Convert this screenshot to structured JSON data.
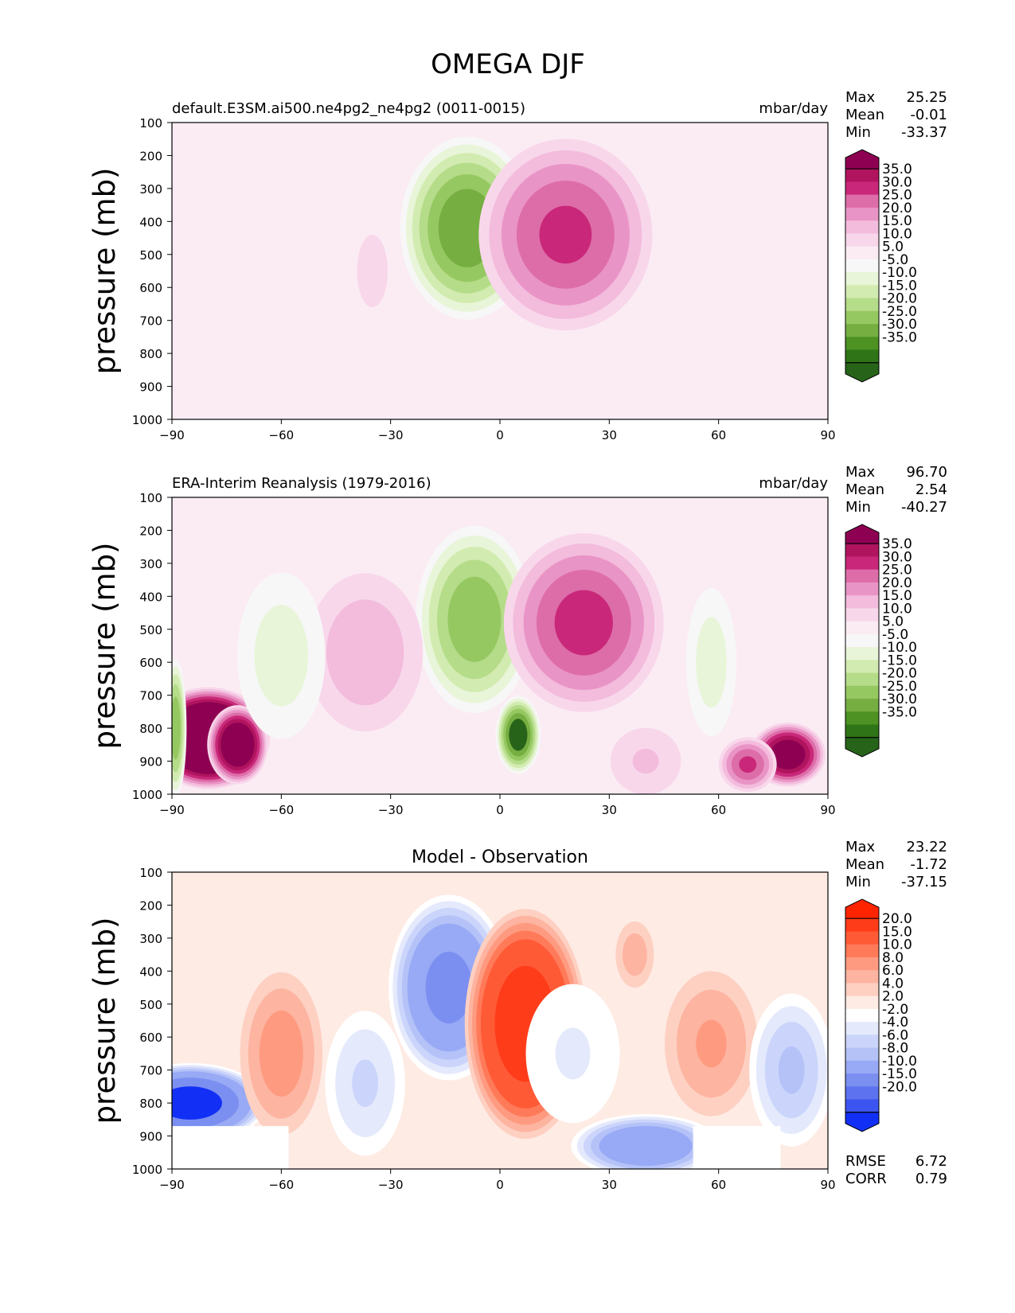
{
  "title": "OMEGA DJF",
  "chart_data": [
    {
      "type": "heatmap",
      "title": "default.E3SM.ai500.ne4pg2_ne4pg2 (0011-0015)",
      "units": "mbar/day",
      "ylabel": "pressure (mb)",
      "xlabel": "",
      "xlim": [
        -90,
        90
      ],
      "ylim": [
        1000,
        100
      ],
      "xticks": [
        "−90",
        "−60",
        "−30",
        "0",
        "30",
        "60",
        "90"
      ],
      "yticks": [
        "100",
        "200",
        "300",
        "400",
        "500",
        "600",
        "700",
        "800",
        "900",
        "1000"
      ],
      "stats": [
        {
          "label": "Max",
          "value": "25.25"
        },
        {
          "label": "Mean",
          "value": "-0.01"
        },
        {
          "label": "Min",
          "value": "-33.37"
        }
      ],
      "colorbar": {
        "labels": [
          "35.0",
          "30.0",
          "25.0",
          "20.0",
          "15.0",
          "10.0",
          "5.0",
          "-5.0",
          "-10.0",
          "-15.0",
          "-20.0",
          "-25.0",
          "-30.0",
          "-35.0"
        ],
        "colors": [
          "#8e0152",
          "#b0145f",
          "#c9287a",
          "#dd6da8",
          "#e994c6",
          "#f3bbdc",
          "#f8d7eb",
          "#fbecf4",
          "#f7f7f7",
          "#e8f5d8",
          "#d2ebb0",
          "#b5dc89",
          "#96c862",
          "#76ae41",
          "#4d9222",
          "#2f7517",
          "#276419"
        ]
      },
      "features": [
        {
          "x": -9,
          "y": 420,
          "value": -33,
          "sx": 9,
          "sy": 260
        },
        {
          "x": 18,
          "y": 440,
          "value": 25,
          "sx": 12,
          "sy": 280
        },
        {
          "x": -35,
          "y": 550,
          "value": 6,
          "sx": 4,
          "sy": 200
        }
      ]
    },
    {
      "type": "heatmap",
      "title": "ERA-Interim Reanalysis (1979-2016)",
      "units": "mbar/day",
      "ylabel": "pressure (mb)",
      "xlabel": "",
      "xlim": [
        -90,
        90
      ],
      "ylim": [
        1000,
        100
      ],
      "xticks": [
        "−90",
        "−60",
        "−30",
        "0",
        "30",
        "60",
        "90"
      ],
      "yticks": [
        "100",
        "200",
        "300",
        "400",
        "500",
        "600",
        "700",
        "800",
        "900",
        "1000"
      ],
      "stats": [
        {
          "label": "Max",
          "value": "96.70"
        },
        {
          "label": "Mean",
          "value": "2.54"
        },
        {
          "label": "Min",
          "value": "-40.27"
        }
      ],
      "colorbar": {
        "labels": [
          "35.0",
          "30.0",
          "25.0",
          "20.0",
          "15.0",
          "10.0",
          "5.0",
          "-5.0",
          "-10.0",
          "-15.0",
          "-20.0",
          "-25.0",
          "-30.0",
          "-35.0"
        ],
        "colors": [
          "#8e0152",
          "#b0145f",
          "#c9287a",
          "#dd6da8",
          "#e994c6",
          "#f3bbdc",
          "#f8d7eb",
          "#fbecf4",
          "#f7f7f7",
          "#e8f5d8",
          "#d2ebb0",
          "#b5dc89",
          "#96c862",
          "#76ae41",
          "#4d9222",
          "#2f7517",
          "#276419"
        ]
      },
      "features": [
        {
          "x": -7,
          "y": 470,
          "value": -28,
          "sx": 8,
          "sy": 270
        },
        {
          "x": 5,
          "y": 820,
          "value": -38,
          "sx": 3,
          "sy": 110
        },
        {
          "x": 23,
          "y": 480,
          "value": 26,
          "sx": 11,
          "sy": 260
        },
        {
          "x": -80,
          "y": 830,
          "value": 60,
          "sx": 8,
          "sy": 140
        },
        {
          "x": -72,
          "y": 850,
          "value": 45,
          "sx": 4,
          "sy": 110
        },
        {
          "x": 79,
          "y": 880,
          "value": 40,
          "sx": 5,
          "sy": 90
        },
        {
          "x": 68,
          "y": 910,
          "value": 25,
          "sx": 4,
          "sy": 80
        },
        {
          "x": -37,
          "y": 570,
          "value": 13,
          "sx": 9,
          "sy": 260
        },
        {
          "x": -60,
          "y": 580,
          "value": -12,
          "sx": 7,
          "sy": 280
        },
        {
          "x": 58,
          "y": 600,
          "value": -12,
          "sx": 4,
          "sy": 250
        },
        {
          "x": -89,
          "y": 800,
          "value": -28,
          "sx": 1.5,
          "sy": 200
        },
        {
          "x": 40,
          "y": 900,
          "value": 10,
          "sx": 6,
          "sy": 120
        }
      ]
    },
    {
      "type": "heatmap",
      "title": "Model - Observation",
      "units": "",
      "ylabel": "pressure (mb)",
      "xlabel": "",
      "xlim": [
        -90,
        90
      ],
      "ylim": [
        1000,
        100
      ],
      "xticks": [
        "−90",
        "−60",
        "−30",
        "0",
        "30",
        "60",
        "90"
      ],
      "yticks": [
        "100",
        "200",
        "300",
        "400",
        "500",
        "600",
        "700",
        "800",
        "900",
        "1000"
      ],
      "stats": [
        {
          "label": "Max",
          "value": "23.22"
        },
        {
          "label": "Mean",
          "value": "-1.72"
        },
        {
          "label": "Min",
          "value": "-37.15"
        }
      ],
      "metrics": [
        {
          "label": "RMSE",
          "value": "6.72"
        },
        {
          "label": "CORR",
          "value": "0.79"
        }
      ],
      "colorbar": {
        "labels": [
          "20.0",
          "15.0",
          "10.0",
          "8.0",
          "6.0",
          "4.0",
          "2.0",
          "-2.0",
          "-4.0",
          "-6.0",
          "-8.0",
          "-10.0",
          "-15.0",
          "-20.0"
        ],
        "colors": [
          "#ff2400",
          "#ff3c1a",
          "#ff5a36",
          "#ff7a59",
          "#fe9a80",
          "#fdb4a0",
          "#fdd0c2",
          "#feebe4",
          "#ffffff",
          "#e4e9fc",
          "#cbd5fb",
          "#b4c2f8",
          "#98a9f5",
          "#7b8ff1",
          "#5c72ee",
          "#3d55f0",
          "#1230f5"
        ]
      },
      "features": [
        {
          "x": -14,
          "y": 450,
          "value": -16,
          "sx": 8,
          "sy": 260
        },
        {
          "x": 7,
          "y": 560,
          "value": 18,
          "sx": 8,
          "sy": 320
        },
        {
          "x": -85,
          "y": 800,
          "value": -22,
          "sx": 10,
          "sy": 110
        },
        {
          "x": -60,
          "y": 650,
          "value": 7,
          "sx": 6,
          "sy": 250
        },
        {
          "x": 58,
          "y": 620,
          "value": 6,
          "sx": 7,
          "sy": 230
        },
        {
          "x": 37,
          "y": 350,
          "value": 5,
          "sx": 3,
          "sy": 110
        },
        {
          "x": 40,
          "y": 930,
          "value": -14,
          "sx": 10,
          "sy": 90
        },
        {
          "x": -37,
          "y": 740,
          "value": -6,
          "sx": 6,
          "sy": 230
        },
        {
          "x": 80,
          "y": 700,
          "value": -8,
          "sx": 6,
          "sy": 230
        },
        {
          "x": 20,
          "y": 650,
          "value": -4,
          "sx": 8,
          "sy": 250
        }
      ],
      "masks": [
        {
          "x0": -90,
          "x1": -58,
          "p0": 870,
          "p1": 1000
        },
        {
          "x0": 53,
          "x1": 77,
          "p0": 870,
          "p1": 1000
        }
      ]
    }
  ]
}
